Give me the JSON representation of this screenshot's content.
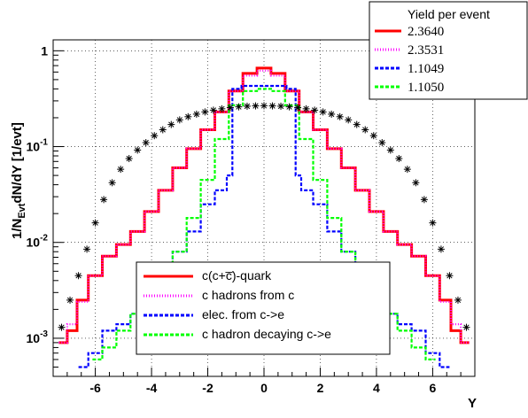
{
  "chart_data": {
    "type": "line",
    "title": "",
    "xlabel": "Y",
    "ylabel": "1/N_Evt dN/dY [1/evt]",
    "ylabel_parts": {
      "a": "1/N",
      "sub": "Evt",
      "b": "dN/dY [1/evt]"
    },
    "xlim": [
      -7.5,
      7.5
    ],
    "ylim": [
      0.0004,
      1.3
    ],
    "yscale": "log",
    "grid": true,
    "x_ticks": [
      -6,
      -4,
      -2,
      0,
      2,
      4,
      6
    ],
    "x_tick_labels": [
      "-6",
      "-4",
      "-2",
      "0",
      "2",
      "4",
      "6"
    ],
    "y_ticks": [
      0.001,
      0.01,
      0.1,
      1
    ],
    "y_tick_labels": [
      {
        "base": "10",
        "exp": "-3"
      },
      {
        "base": "10",
        "exp": "-2"
      },
      {
        "base": "10",
        "exp": "-1"
      },
      {
        "base": "1",
        "exp": ""
      }
    ],
    "yield_box": {
      "title": "Yield per event",
      "rows": [
        {
          "value": "2.3640",
          "color": "#ff0000",
          "style": "solid"
        },
        {
          "value": "2.3531",
          "color": "#ff00ff",
          "style": "dotted"
        },
        {
          "value": "1.1049",
          "color": "#0000ff",
          "style": "dashed"
        },
        {
          "value": "1.1050",
          "color": "#00ff00",
          "style": "dashed"
        }
      ]
    },
    "legend": {
      "placement": "bottom-center",
      "entries": [
        {
          "label": "c(c+c̅)-quark",
          "color": "#ff0000",
          "style": "solid"
        },
        {
          "label": "c hadrons from c",
          "color": "#ff00ff",
          "style": "dotted"
        },
        {
          "label": "elec. from c->e",
          "color": "#0000ff",
          "style": "dashed"
        },
        {
          "label": "c hadron decaying c->e",
          "color": "#00ff00",
          "style": "dashed"
        }
      ]
    },
    "series": [
      {
        "name": "c(c+c̅)-quark",
        "color": "#ff0000",
        "x": [
          -7.2,
          -6.8,
          -6.5,
          -6,
          -5.5,
          -5,
          -4.5,
          -4,
          -3.5,
          -3,
          -2.5,
          -2,
          -1.5,
          -1,
          -0.5,
          0,
          0.5,
          1,
          1.5,
          2,
          2.5,
          3,
          3.5,
          4,
          4.5,
          5,
          5.5,
          6,
          6.5,
          6.8,
          7.2
        ],
        "y": [
          0.0009,
          0.0012,
          0.0025,
          0.0045,
          0.0072,
          0.0095,
          0.013,
          0.021,
          0.035,
          0.06,
          0.095,
          0.15,
          0.23,
          0.38,
          0.58,
          0.66,
          0.58,
          0.38,
          0.23,
          0.15,
          0.095,
          0.06,
          0.035,
          0.021,
          0.013,
          0.0095,
          0.0072,
          0.0045,
          0.0025,
          0.0012,
          0.0009
        ]
      },
      {
        "name": "c hadrons from c",
        "color": "#ff00ff",
        "x": [
          -7.2,
          -6.8,
          -6.5,
          -6,
          -5.5,
          -5,
          -4.5,
          -4,
          -3.5,
          -3,
          -2.5,
          -2,
          -1.5,
          -1,
          -0.5,
          0,
          0.5,
          1,
          1.5,
          2,
          2.5,
          3,
          3.5,
          4,
          4.5,
          5,
          5.5,
          6,
          6.5,
          6.8,
          7.2
        ],
        "y": [
          0.0009,
          0.0014,
          0.0024,
          0.0045,
          0.0072,
          0.0095,
          0.013,
          0.021,
          0.035,
          0.06,
          0.095,
          0.15,
          0.23,
          0.38,
          0.55,
          0.62,
          0.55,
          0.38,
          0.23,
          0.15,
          0.095,
          0.06,
          0.035,
          0.021,
          0.013,
          0.0095,
          0.0072,
          0.0045,
          0.0024,
          0.0014,
          0.0009
        ]
      },
      {
        "name": "elec. from c->e",
        "color": "#0000ff",
        "x": [
          -6.5,
          -6,
          -5.5,
          -5,
          -4.5,
          -4,
          -3.5,
          -3,
          -2.5,
          -2,
          -1.5,
          -1.15,
          -1.1,
          -0.5,
          0,
          0.5,
          1.1,
          1.15,
          1.5,
          2,
          2.5,
          3,
          3.5,
          4,
          4.5,
          5,
          5.5,
          6,
          6.5
        ],
        "y": [
          0.0005,
          0.0007,
          0.0012,
          0.0014,
          0.0018,
          0.0025,
          0.0045,
          0.008,
          0.013,
          0.025,
          0.035,
          0.05,
          0.4,
          0.43,
          0.43,
          0.43,
          0.4,
          0.05,
          0.035,
          0.025,
          0.013,
          0.008,
          0.0045,
          0.0025,
          0.0018,
          0.0014,
          0.0012,
          0.0007,
          0.0005
        ]
      },
      {
        "name": "c hadron decaying c->e",
        "color": "#00ff00",
        "x": [
          -6,
          -5.5,
          -5,
          -4.5,
          -4,
          -3.5,
          -3,
          -2.5,
          -2,
          -1.5,
          -1,
          -0.5,
          0,
          0.5,
          1,
          1.5,
          2,
          2.5,
          3,
          3.5,
          4,
          4.5,
          5,
          5.5,
          6
        ],
        "y": [
          0.0006,
          0.0008,
          0.0012,
          0.0018,
          0.0028,
          0.0045,
          0.008,
          0.018,
          0.045,
          0.12,
          0.27,
          0.38,
          0.4,
          0.38,
          0.27,
          0.12,
          0.045,
          0.018,
          0.008,
          0.0045,
          0.0028,
          0.0018,
          0.0012,
          0.0008,
          0.0006
        ]
      },
      {
        "name": "markers",
        "color": "#000000",
        "marker": "asterisk",
        "x": [
          -7.2,
          -6.9,
          -6.6,
          -6.3,
          -6.0,
          -5.7,
          -5.4,
          -5.1,
          -4.8,
          -4.5,
          -4.2,
          -3.9,
          -3.6,
          -3.3,
          -3.0,
          -2.7,
          -2.4,
          -2.1,
          -1.8,
          -1.5,
          -1.2,
          -0.9,
          -0.6,
          -0.3,
          0.0,
          0.3,
          0.6,
          0.9,
          1.2,
          1.5,
          1.8,
          2.1,
          2.4,
          2.7,
          3.0,
          3.3,
          3.6,
          3.9,
          4.2,
          4.5,
          4.8,
          5.1,
          5.4,
          5.7,
          6.0,
          6.3,
          6.6,
          6.9,
          7.2
        ],
        "y": [
          0.0013,
          0.0025,
          0.0045,
          0.0085,
          0.016,
          0.028,
          0.042,
          0.058,
          0.075,
          0.092,
          0.11,
          0.13,
          0.15,
          0.17,
          0.19,
          0.205,
          0.218,
          0.23,
          0.24,
          0.248,
          0.255,
          0.26,
          0.264,
          0.266,
          0.267,
          0.266,
          0.264,
          0.26,
          0.255,
          0.248,
          0.24,
          0.23,
          0.218,
          0.205,
          0.19,
          0.17,
          0.15,
          0.13,
          0.11,
          0.092,
          0.075,
          0.058,
          0.042,
          0.028,
          0.016,
          0.0085,
          0.0045,
          0.0025,
          0.0013
        ]
      }
    ]
  }
}
